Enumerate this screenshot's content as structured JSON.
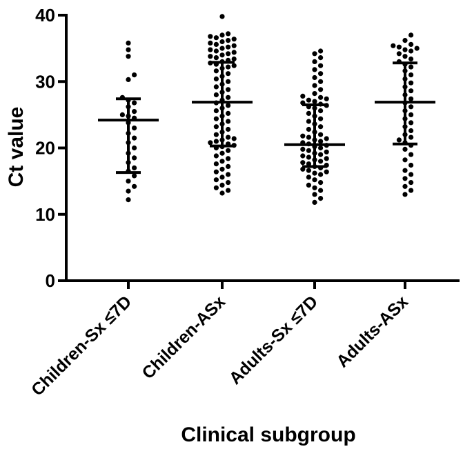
{
  "chart_data": {
    "type": "scatter",
    "xlabel": "Clinical subgroup",
    "ylabel": "Ct value",
    "ylim": [
      0,
      40
    ],
    "yticks": [
      "0",
      "10",
      "20",
      "30",
      "40"
    ],
    "categories": [
      "Children-Sx ≤7D",
      "Children-ASx",
      "Adults-Sx ≤7D",
      "Adults-ASx"
    ],
    "groups": [
      {
        "category": "Children-Sx ≤7D",
        "mean": 24.2,
        "sd_low": 16.3,
        "sd_high": 27.4,
        "values": [
          35.8,
          34.8,
          33.8,
          31.0,
          30.3,
          27.6,
          27.2,
          26.8,
          26.2,
          25.5,
          25.0,
          24.8,
          24.5,
          23.8,
          23.0,
          22.2,
          21.5,
          20.8,
          20.0,
          19.2,
          18.5,
          17.8,
          17.0,
          16.5,
          15.8,
          15.0,
          14.2,
          13.5,
          12.2
        ]
      },
      {
        "category": "Children-ASx",
        "mean": 26.9,
        "sd_low": 20.3,
        "sd_high": 32.9,
        "values": [
          39.8,
          37.2,
          37.0,
          36.8,
          36.6,
          36.4,
          36.2,
          36.0,
          35.8,
          35.6,
          35.4,
          35.2,
          35.0,
          34.8,
          34.6,
          34.4,
          34.2,
          34.0,
          33.8,
          33.6,
          33.4,
          33.2,
          33.0,
          32.8,
          32.6,
          32.4,
          32.2,
          32.0,
          31.6,
          31.2,
          30.8,
          30.4,
          30.0,
          29.6,
          29.2,
          28.8,
          28.4,
          28.0,
          27.6,
          27.2,
          26.8,
          26.4,
          26.0,
          25.6,
          25.2,
          24.8,
          24.4,
          24.0,
          23.6,
          23.2,
          22.8,
          22.4,
          22.0,
          21.6,
          21.4,
          21.2,
          21.0,
          20.8,
          20.6,
          20.4,
          20.2,
          20.0,
          19.6,
          19.2,
          18.8,
          18.4,
          18.0,
          17.6,
          17.2,
          16.8,
          16.4,
          16.0,
          15.6,
          15.2,
          14.8,
          14.4,
          14.0,
          13.6,
          13.2
        ]
      },
      {
        "category": "Adults-Sx ≤7D",
        "mean": 20.5,
        "sd_low": 17.2,
        "sd_high": 26.5,
        "values": [
          34.6,
          34.2,
          33.6,
          33.0,
          32.4,
          31.8,
          31.2,
          30.6,
          30.0,
          29.4,
          28.8,
          28.2,
          27.8,
          27.6,
          27.4,
          27.2,
          27.0,
          26.8,
          26.6,
          26.4,
          26.2,
          26.0,
          25.6,
          25.2,
          24.8,
          24.4,
          24.0,
          23.6,
          23.2,
          22.8,
          22.4,
          22.0,
          21.8,
          21.6,
          21.4,
          21.2,
          21.0,
          20.8,
          20.6,
          20.4,
          20.2,
          20.0,
          19.8,
          19.6,
          19.4,
          19.2,
          19.0,
          18.8,
          18.6,
          18.4,
          18.2,
          18.0,
          17.8,
          17.6,
          17.4,
          17.2,
          17.0,
          16.8,
          16.6,
          16.4,
          16.2,
          16.0,
          15.6,
          15.2,
          14.8,
          14.4,
          14.0,
          13.6,
          13.0,
          12.4,
          11.8
        ]
      },
      {
        "category": "Adults-ASx",
        "mean": 26.9,
        "sd_low": 20.6,
        "sd_high": 32.8,
        "values": [
          37.0,
          36.2,
          35.6,
          35.4,
          35.2,
          35.0,
          34.8,
          34.6,
          34.2,
          33.8,
          33.4,
          33.0,
          32.6,
          32.2,
          31.6,
          31.0,
          30.4,
          29.8,
          29.2,
          28.6,
          28.0,
          27.4,
          26.8,
          26.2,
          25.6,
          25.0,
          24.4,
          23.8,
          23.2,
          22.6,
          22.0,
          21.6,
          21.2,
          20.8,
          20.4,
          19.8,
          19.0,
          18.2,
          17.4,
          16.6,
          16.0,
          15.4,
          14.8,
          14.2,
          13.6,
          13.0
        ]
      }
    ]
  }
}
